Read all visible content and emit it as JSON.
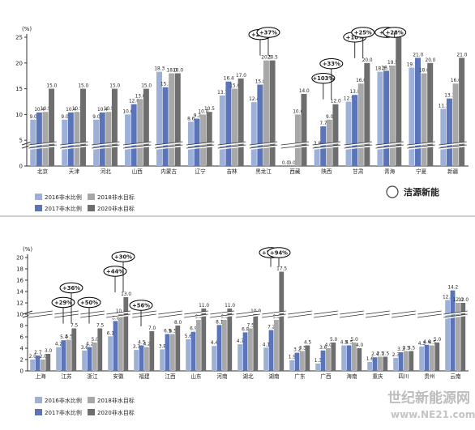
{
  "watermark": {
    "brand": "洁源新能",
    "site_cn": "世纪新能源网",
    "site_url": "www.NE21.com"
  },
  "colors": {
    "s2016": "#9db1d8",
    "s2017": "#5b73b8",
    "s2018": "#a8a8a8",
    "s2020": "#6e6e6e",
    "axis": "#333333",
    "callout": "#000000"
  },
  "legend_labels": [
    "2016非水比例",
    "2017非水比例",
    "2018非水目标",
    "2020非水目标"
  ],
  "chart_data": [
    {
      "type": "bar",
      "unit_label": "(%)",
      "ylim": [
        0,
        25
      ],
      "yticks": [
        0,
        5,
        10,
        15,
        20,
        25
      ],
      "axis_break": true,
      "categories": [
        "北京",
        "天津",
        "河北",
        "山西",
        "内蒙古",
        "辽宁",
        "吉林",
        "黑龙江",
        "西藏",
        "陕西",
        "甘肃",
        "青海",
        "宁夏",
        "新疆"
      ],
      "series": [
        {
          "name": "2016非水比例",
          "values": [
            9.0,
            9.0,
            9.0,
            10.0,
            18.3,
            8.6,
            13.7,
            12.4,
            0.0,
            3.8,
            12.5,
            18.3,
            19.1,
            11.1
          ]
        },
        {
          "name": "2017非水比例",
          "values": [
            10.4,
            10.4,
            10.4,
            12.0,
            15.3,
            9.2,
            16.4,
            15.8,
            0.0,
            7.7,
            13.8,
            18.5,
            21.0,
            13.1
          ]
        },
        {
          "name": "2018非水目标",
          "values": [
            10.5,
            10.5,
            10.5,
            13.0,
            18.0,
            10.0,
            15.0,
            20.5,
            10.0,
            9.0,
            16.0,
            19.5,
            18.0,
            16.0
          ]
        },
        {
          "name": "2020非水目标",
          "values": [
            15.0,
            15.0,
            15.0,
            15.0,
            18.0,
            10.5,
            17.0,
            20.5,
            14.0,
            12.0,
            20.0,
            25.0,
            20.0,
            21.0
          ]
        }
      ],
      "callouts": [
        {
          "category": "黑龙江",
          "label": "+27%"
        },
        {
          "category": "黑龙江",
          "label": "+37%"
        },
        {
          "category": "陕西",
          "label": "+103%"
        },
        {
          "category": "陕西",
          "label": "+33%"
        },
        {
          "category": "甘肃",
          "label": "+10%"
        },
        {
          "category": "甘肃",
          "label": "+25%"
        },
        {
          "category": "青海",
          "label": "+1%"
        },
        {
          "category": "青海",
          "label": "+28%"
        }
      ]
    },
    {
      "type": "bar",
      "unit_label": "(%)",
      "ylim": [
        0,
        20
      ],
      "yticks": [
        0,
        2,
        4,
        6,
        8,
        10,
        12,
        14,
        16,
        18,
        20
      ],
      "axis_break": true,
      "categories": [
        "上海",
        "江苏",
        "浙江",
        "安徽",
        "福建",
        "江西",
        "山东",
        "河南",
        "湖北",
        "湖南",
        "广东",
        "广西",
        "海南",
        "重庆",
        "四川",
        "贵州",
        "云南"
      ],
      "series": [
        {
          "name": "2016非水比例",
          "values": [
            2.0,
            4.2,
            3.6,
            6.1,
            3.7,
            3.8,
            5.6,
            4.4,
            4.7,
            4.1,
            1.9,
            1.3,
            4.5,
            1.6,
            2.3,
            4.3,
            12.5
          ]
        },
        {
          "name": "2017非水比例",
          "values": [
            2.7,
            5.4,
            4.2,
            8.8,
            4.5,
            6.5,
            6.9,
            8.1,
            6.8,
            7.2,
            3.2,
            3.6,
            4.5,
            2.4,
            3.3,
            4.6,
            14.2
          ]
        },
        {
          "name": "2018非水目标",
          "values": [
            2.0,
            5.5,
            5.0,
            10.0,
            4.2,
            6.5,
            9.0,
            9.0,
            7.5,
            9.0,
            3.5,
            4.0,
            5.0,
            2.5,
            3.5,
            4.5,
            12.0
          ]
        },
        {
          "name": "2020非水目标",
          "values": [
            3.0,
            7.5,
            7.5,
            13.0,
            7.0,
            8.0,
            11.0,
            11.0,
            10.0,
            17.5,
            4.5,
            5.0,
            4.0,
            2.5,
            3.5,
            5.0,
            12.0
          ]
        }
      ],
      "callouts": [
        {
          "category": "江苏",
          "label": "+29%"
        },
        {
          "category": "江苏",
          "label": "+36%"
        },
        {
          "category": "浙江",
          "label": "+50%"
        },
        {
          "category": "安徽",
          "label": "+44%"
        },
        {
          "category": "安徽",
          "label": "+30%"
        },
        {
          "category": "福建",
          "label": "+56%"
        },
        {
          "category": "湖南",
          "label": "+76%"
        },
        {
          "category": "湖南",
          "label": "+94%"
        }
      ]
    }
  ]
}
